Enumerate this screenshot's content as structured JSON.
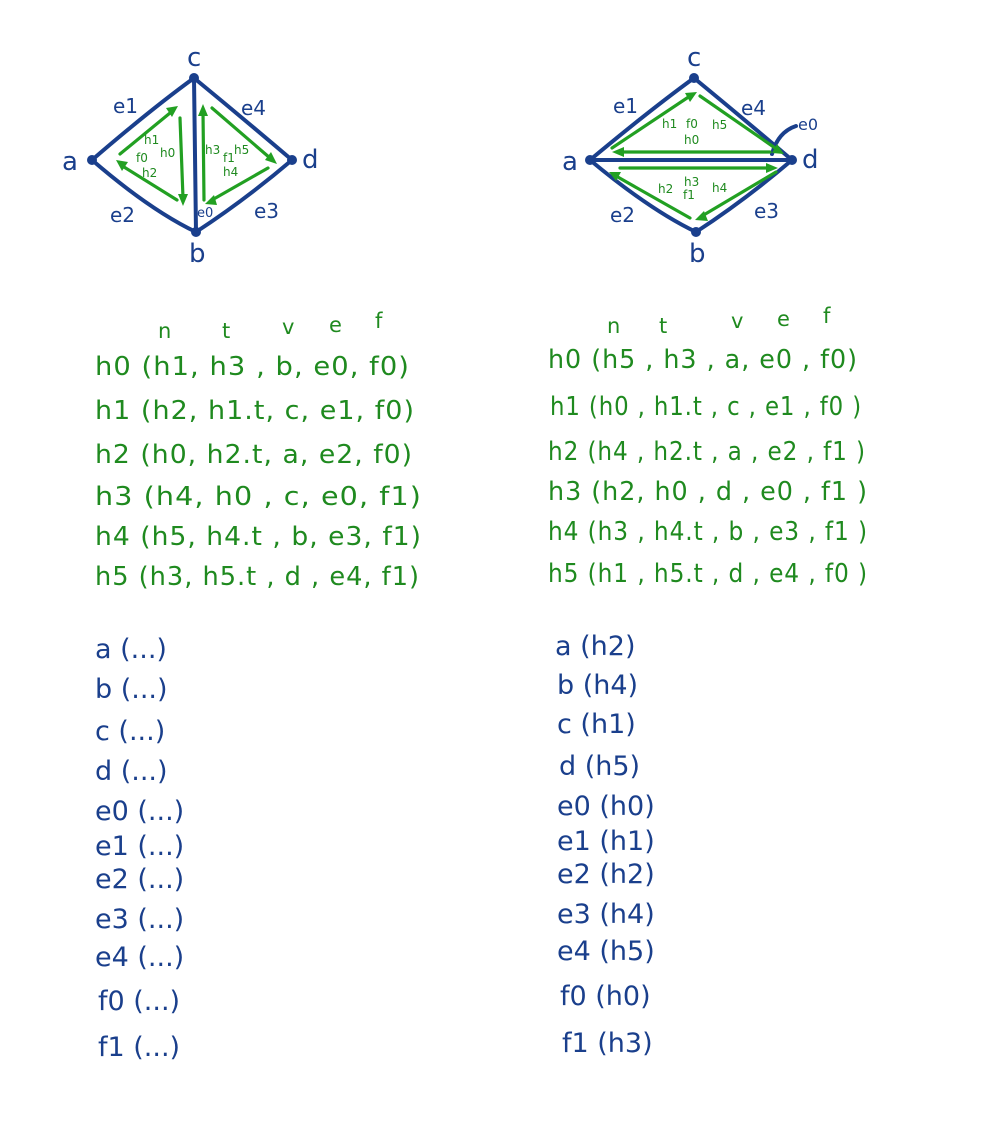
{
  "left_diagram": {
    "vertices": [
      "a",
      "b",
      "c",
      "d"
    ],
    "edges": [
      "e1",
      "e2",
      "e3",
      "e4",
      "e0"
    ],
    "faces": [
      "f0",
      "f1"
    ],
    "half_edges": [
      "h0",
      "h1",
      "h2",
      "h3",
      "h4",
      "h5"
    ]
  },
  "right_diagram": {
    "vertices": [
      "a",
      "b",
      "c",
      "d"
    ],
    "edges": [
      "e1",
      "e2",
      "e3",
      "e4",
      "e0"
    ],
    "faces": [
      "f0",
      "f1"
    ],
    "half_edges": [
      "h0",
      "h1",
      "h3",
      "h5",
      "h2",
      "h4"
    ]
  },
  "column_headers": [
    "n",
    "t",
    "v",
    "e",
    "f"
  ],
  "left_table": [
    "h0 (h1, h3   , b,  e0, f0)",
    "h1 (h2, h1.t, c,  e1, f0)",
    "h2 (h0, h2.t, a, e2, f0)",
    "h3 (h4, h0   , c, e0, f1)",
    "h4 (h5, h4.t , b, e3, f1)",
    "h5 (h3, h5.t , d , e4, f1)"
  ],
  "right_table": [
    "h0 (h5 , h3   , a, e0 , f0)",
    "h1 (h0 , h1.t   , c , e1 , f0 )",
    "h2 (h4 , h2.t , a , e2 , f1 )",
    "h3 (h2, h0     , d , e0 , f1 )",
    "h4 (h3 , h4.t  , b , e3 , f1 )",
    "h5 (h1 , h5.t , d , e4 , f0 )"
  ],
  "left_list": [
    "a (...)",
    "b (...)",
    "c (...)",
    "d (...)",
    "e0 (...)",
    "e1 (...)",
    "e2 (...)",
    "e3 (...)",
    "e4 (...)",
    "f0 (...)",
    "f1 (...)"
  ],
  "right_list": [
    "a (h2)",
    "b (h4)",
    "c (h1)",
    "d (h5)",
    "e0 (h0)",
    "e1 (h1)",
    "e2 (h2)",
    "e3 (h4)",
    "e4 (h5)",
    "f0 (h0)",
    "f1 (h3)"
  ],
  "colors": {
    "ink_blue": "#1a3f8c",
    "ink_green": "#1f8a1f"
  }
}
